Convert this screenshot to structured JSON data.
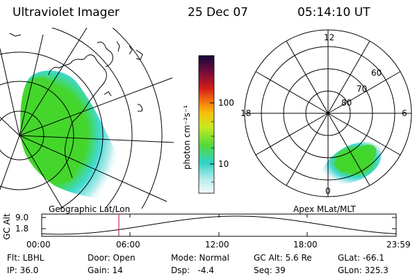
{
  "header": {
    "instrument": "Ultraviolet Imager",
    "date": "25 Dec 07",
    "time": "05:14:10 UT"
  },
  "colorbar": {
    "unit_label": "photon cm⁻²s⁻¹",
    "ticks": [
      "100",
      "10"
    ]
  },
  "polar_plot": {
    "mlt_labels": [
      "12",
      "18",
      "6",
      "0"
    ],
    "mlat_labels": [
      "60",
      "70",
      "80"
    ]
  },
  "panel_labels": {
    "left": "Geographic Lat/Lon",
    "right": "Apex MLat/MLT"
  },
  "altitude_plot": {
    "ylabel": "GC Alt",
    "yticks": [
      "9.0",
      "1.8"
    ],
    "xticks": [
      "00:00",
      "06:00",
      "12:00",
      "18:00",
      "23:59"
    ],
    "current_time_marker": "05:14"
  },
  "info": {
    "flt": "Flt: LBHL",
    "ip": "IP: 36.0",
    "door": "Door: Open",
    "gain": "Gain: 14",
    "mode": "Mode: Normal",
    "dsp": "Dsp:   -4.4",
    "gcalt": "GC Alt: 5.6 Re",
    "seq": "Seq: 39",
    "glat": "GLat: -66.1",
    "glon": "GLon: 325.3"
  },
  "colors": {
    "aurora_green": "#44d62c",
    "aurora_cyan": "#3fd9d0",
    "aurora_pale": "#c8eef0",
    "time_marker": "#c83050"
  }
}
